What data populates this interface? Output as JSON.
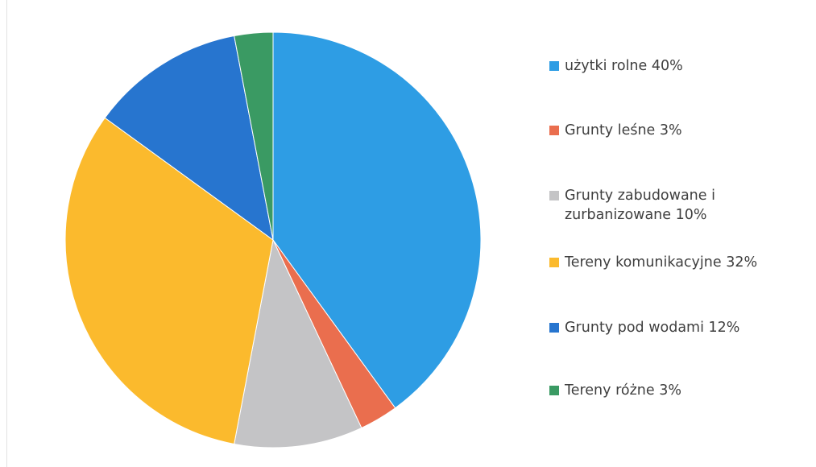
{
  "chart_data": {
    "type": "pie",
    "categories": [
      "użytki rolne 40%",
      "Grunty leśne 3%",
      "Grunty zabudowane i zurbanizowane 10%",
      "Tereny komunikacyjne 32%",
      "Grunty pod wodami 12%",
      "Tereny różne 3%"
    ],
    "values": [
      40,
      3,
      10,
      32,
      12,
      3
    ],
    "unit": "%",
    "colors": [
      "#2e9de4",
      "#ea6e4e",
      "#c4c4c6",
      "#fbba2d",
      "#2775cf",
      "#3a9a63"
    ],
    "legend_position": "right",
    "start_angle": "top, clockwise",
    "legend": [
      {
        "label": "użytki rolne 40%",
        "color": "#2e9de4"
      },
      {
        "label": "Grunty leśne 3%",
        "color": "#ea6e4e"
      },
      {
        "label": "Grunty zabudowane i zurbanizowane 10%",
        "color": "#c4c4c6"
      },
      {
        "label": "Tereny komunikacyjne 32%",
        "color": "#fbba2d"
      },
      {
        "label": "Grunty pod wodami 12%",
        "color": "#2775cf"
      },
      {
        "label": "Tereny różne 3%",
        "color": "#3a9a63"
      }
    ]
  }
}
